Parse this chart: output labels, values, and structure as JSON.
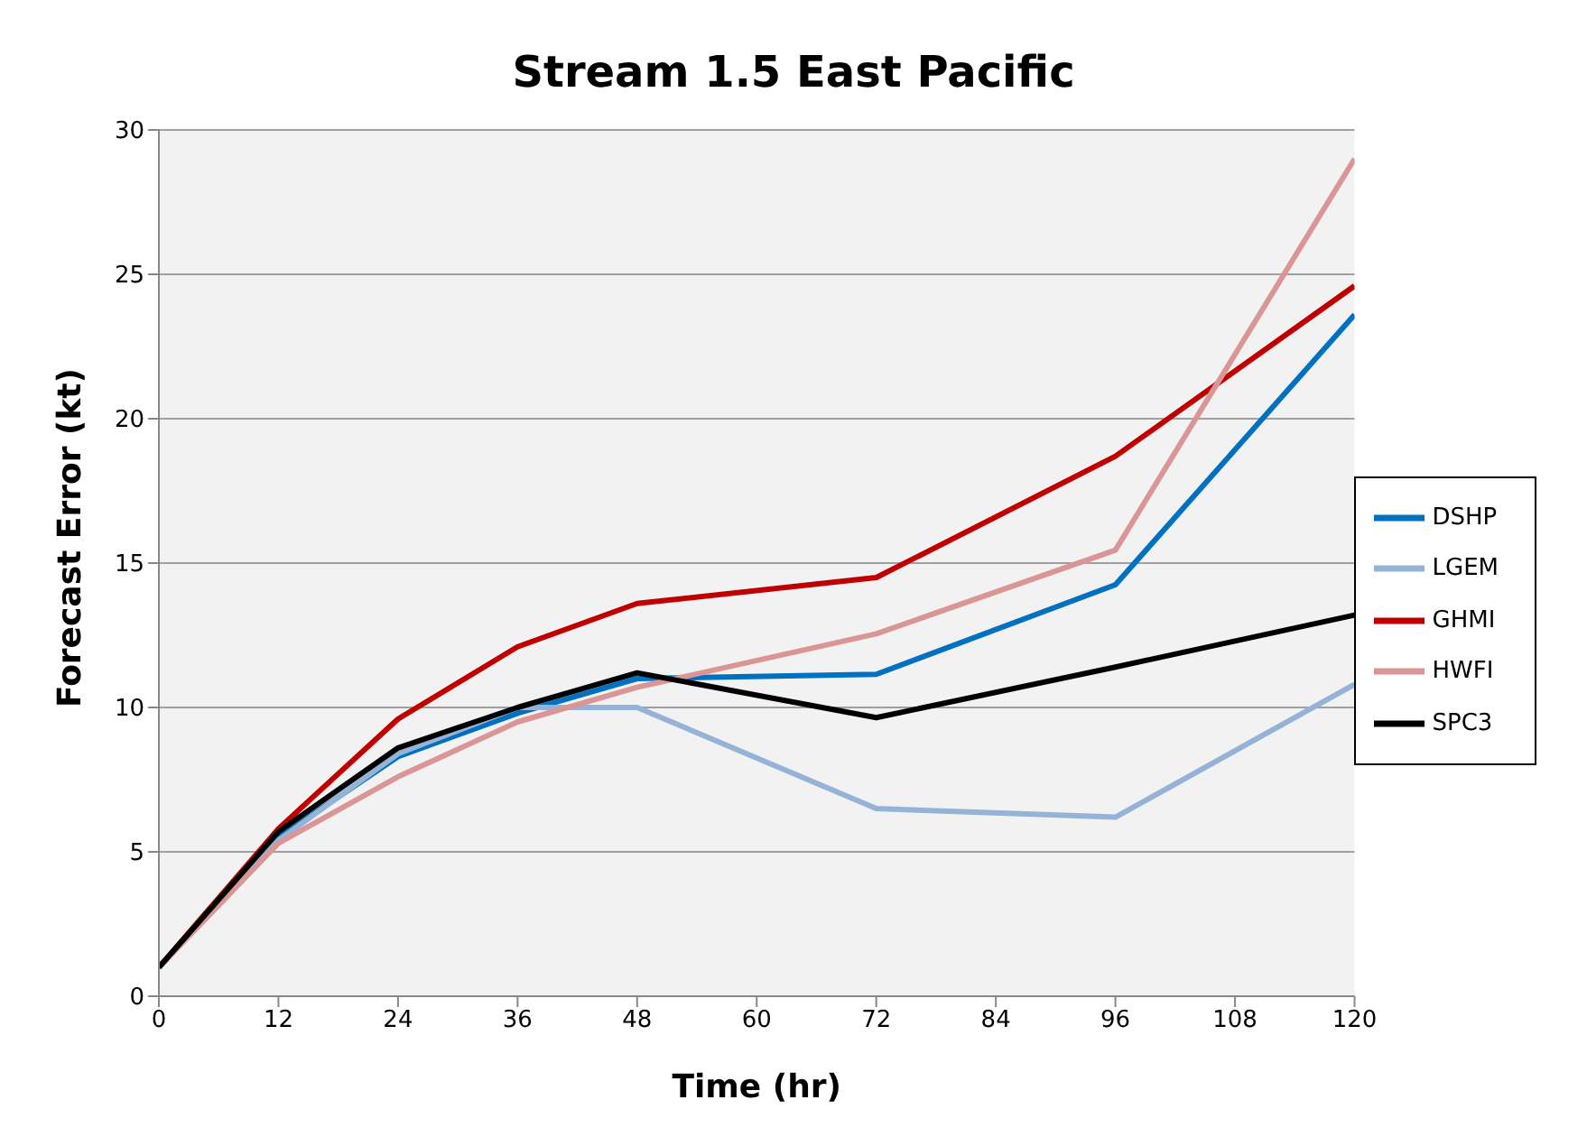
{
  "chart_data": {
    "type": "line",
    "title": "Stream 1.5 East Pacific",
    "xlabel": "Time (hr)",
    "ylabel": "Forecast Error (kt)",
    "x": [
      0,
      12,
      24,
      36,
      48,
      72,
      96,
      120
    ],
    "series": [
      {
        "name": "DSHP",
        "color": "#0070c0",
        "values": [
          1,
          5.5,
          8.3,
          9.8,
          11.0,
          11.15,
          14.25,
          23.6
        ]
      },
      {
        "name": "LGEM",
        "color": "#95b3d7",
        "values": [
          1,
          5.4,
          8.4,
          10.0,
          10.0,
          6.5,
          6.2,
          10.8
        ]
      },
      {
        "name": "GHMI",
        "color": "#c00000",
        "values": [
          1,
          5.8,
          9.6,
          12.1,
          13.6,
          14.5,
          18.7,
          24.6
        ]
      },
      {
        "name": "HWFI",
        "color": "#da9694",
        "values": [
          1,
          5.3,
          7.6,
          9.5,
          10.7,
          12.55,
          15.45,
          29.0
        ]
      },
      {
        "name": "SPC3",
        "color": "#000000",
        "values": [
          1,
          5.7,
          8.6,
          10.0,
          11.2,
          9.65,
          11.4,
          13.2
        ]
      }
    ],
    "xlim": [
      0,
      120
    ],
    "xticks": [
      0,
      12,
      24,
      36,
      48,
      60,
      72,
      84,
      96,
      108,
      120
    ],
    "ylim": [
      0,
      30
    ],
    "yticks": [
      0,
      5,
      10,
      15,
      20,
      25,
      30
    ],
    "grid": "y",
    "legend": "right",
    "marker": "none",
    "line_style": "solid"
  }
}
